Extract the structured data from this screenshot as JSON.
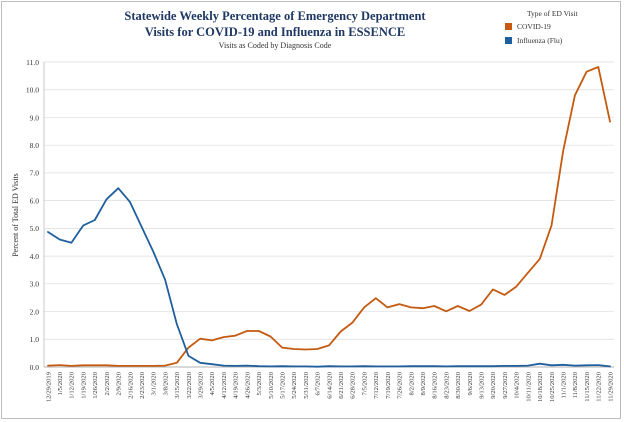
{
  "chart_data": {
    "type": "line",
    "title_line1": "Statewide Weekly Percentage of Emergency Department",
    "title_line2": "Visits for COVID-19 and Influenza in ESSENCE",
    "subtitle": "Visits as Coded by Diagnosis Code",
    "ylabel": "Percent of Total ED Visits",
    "xlabel": "",
    "legend_title": "Type of ED Visit",
    "legend_position": "top-right",
    "ylim": [
      0,
      11
    ],
    "yticks": [
      "0.0",
      "1.0",
      "2.0",
      "3.0",
      "4.0",
      "5.0",
      "6.0",
      "7.0",
      "8.0",
      "9.0",
      "10.0",
      "11.0"
    ],
    "grid": true,
    "categories": [
      "12/29/2019",
      "1/5/2020",
      "1/12/2020",
      "1/19/2020",
      "1/26/2020",
      "2/2/2020",
      "2/9/2020",
      "2/16/2020",
      "2/23/2020",
      "3/1/2020",
      "3/8/2020",
      "3/15/2020",
      "3/22/2020",
      "3/29/2020",
      "4/5/2020",
      "4/12/2020",
      "4/19/2020",
      "4/26/2020",
      "5/3/2020",
      "5/10/2020",
      "5/17/2020",
      "5/24/2020",
      "5/31/2020",
      "6/7/2020",
      "6/14/2020",
      "6/21/2020",
      "6/28/2020",
      "7/5/2020",
      "7/12/2020",
      "7/19/2020",
      "7/26/2020",
      "8/2/2020",
      "8/9/2020",
      "8/16/2020",
      "8/23/2020",
      "8/30/2020",
      "9/6/2020",
      "9/13/2020",
      "9/20/2020",
      "9/27/2020",
      "10/4/2020",
      "10/11/2020",
      "10/18/2020",
      "10/25/2020",
      "11/1/2020",
      "11/8/2020",
      "11/15/2020",
      "11/22/2020",
      "11/29/2020"
    ],
    "series": [
      {
        "name": "COVID-19",
        "color": "#c55a11",
        "values": [
          0.05,
          0.07,
          0.04,
          0.06,
          0.06,
          0.06,
          0.04,
          0.04,
          0.04,
          0.04,
          0.05,
          0.15,
          0.7,
          1.02,
          0.96,
          1.08,
          1.13,
          1.3,
          1.3,
          1.1,
          0.7,
          0.65,
          0.63,
          0.65,
          0.78,
          1.28,
          1.6,
          2.15,
          2.48,
          2.15,
          2.27,
          2.15,
          2.12,
          2.2,
          2.01,
          2.2,
          2.02,
          2.25,
          2.8,
          2.6,
          2.9,
          3.4,
          3.9,
          5.1,
          7.8,
          9.8,
          10.65,
          10.82,
          8.85
        ]
      },
      {
        "name": "Influenza (Flu)",
        "color": "#1f5f9e",
        "values": [
          4.87,
          4.6,
          4.48,
          5.1,
          5.3,
          6.05,
          6.45,
          5.95,
          5.05,
          4.15,
          3.15,
          1.55,
          0.4,
          0.15,
          0.1,
          0.05,
          0.04,
          0.05,
          0.03,
          0.02,
          0.03,
          0.02,
          0.02,
          0.01,
          0.03,
          0.02,
          0.02,
          0.03,
          0.02,
          0.02,
          0.02,
          0.03,
          0.03,
          0.03,
          0.02,
          0.03,
          0.03,
          0.03,
          0.03,
          0.04,
          0.04,
          0.05,
          0.12,
          0.06,
          0.08,
          0.05,
          0.06,
          0.07,
          0.02
        ]
      }
    ]
  }
}
